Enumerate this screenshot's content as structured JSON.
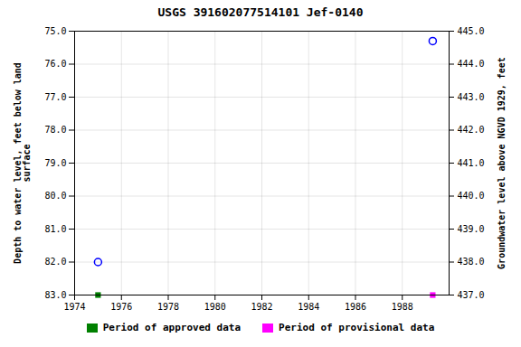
{
  "chart_data": {
    "type": "scatter",
    "title": "USGS 391602077514101  Jef-0140",
    "xlim": [
      1974,
      1990
    ],
    "xticks": [
      1974,
      1976,
      1978,
      1980,
      1982,
      1984,
      1986,
      1988
    ],
    "ylabel": "Depth to water level, feet below land\nsurface",
    "ylim": [
      83.0,
      75.0
    ],
    "yticks": [
      {
        "value": 75.0,
        "label": "75.0"
      },
      {
        "value": 76.0,
        "label": "76.0"
      },
      {
        "value": 77.0,
        "label": "77.0"
      },
      {
        "value": 78.0,
        "label": "78.0"
      },
      {
        "value": 79.0,
        "label": "79.0"
      },
      {
        "value": 80.0,
        "label": "80.0"
      },
      {
        "value": 81.0,
        "label": "81.0"
      },
      {
        "value": 82.0,
        "label": "82.0"
      },
      {
        "value": 83.0,
        "label": "83.0"
      }
    ],
    "y2label": "Groundwater level above NGVD 1929, feet",
    "y2lim": [
      437.0,
      445.0
    ],
    "y2ticks": [
      {
        "value": 437.0,
        "label": "437.0"
      },
      {
        "value": 438.0,
        "label": "438.0"
      },
      {
        "value": 439.0,
        "label": "439.0"
      },
      {
        "value": 440.0,
        "label": "440.0"
      },
      {
        "value": 441.0,
        "label": "441.0"
      },
      {
        "value": 442.0,
        "label": "442.0"
      },
      {
        "value": 443.0,
        "label": "443.0"
      },
      {
        "value": 444.0,
        "label": "444.0"
      },
      {
        "value": 445.0,
        "label": "445.0"
      }
    ],
    "grid": true,
    "legend": "bottom",
    "series": [
      {
        "color": "#0000ff",
        "marker": "open_circle",
        "x": [
          1975.0,
          1989.3
        ],
        "values": [
          82.0,
          75.3
        ]
      },
      {
        "name": "Period of approved data",
        "color": "#008000",
        "marker": "square",
        "x": [
          1975.0
        ],
        "values": [
          83.0
        ]
      },
      {
        "name": "Period of provisional data",
        "color": "#ff00ff",
        "marker": "square",
        "x": [
          1989.3
        ],
        "values": [
          83.0
        ]
      }
    ]
  }
}
